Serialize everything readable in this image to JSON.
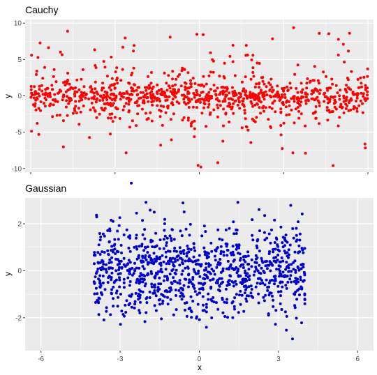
{
  "chart_data": [
    {
      "type": "scatter",
      "title": "Cauchy",
      "xlabel": "",
      "ylabel": "y",
      "xlim": [
        -6.2,
        6.2
      ],
      "ylim": [
        -10.5,
        10.5
      ],
      "x_ticks": [
        -6,
        -3,
        0,
        3,
        6
      ],
      "x_tick_labels": [
        "",
        "",
        "",
        "",
        ""
      ],
      "y_ticks": [
        -10,
        -5,
        0,
        5,
        10
      ],
      "y_tick_labels": [
        "-10",
        "-5",
        "0",
        "5",
        "10"
      ],
      "grid": true,
      "point_color": "#ff0000",
      "n_points": 1000,
      "distribution": "cauchy",
      "x_range": [
        -6,
        6
      ],
      "y_display_limit": 10
    },
    {
      "type": "scatter",
      "title": "Gaussian",
      "xlabel": "x",
      "ylabel": "y",
      "xlim": [
        -6.6,
        6.6
      ],
      "ylim": [
        -3.4,
        3.1
      ],
      "x_ticks": [
        -6,
        -3,
        0,
        3,
        6
      ],
      "x_tick_labels": [
        "-6",
        "-3",
        "0",
        "3",
        "6"
      ],
      "y_ticks": [
        -2,
        0,
        2
      ],
      "y_tick_labels": [
        "-2",
        "0",
        "2"
      ],
      "grid": true,
      "point_color": "#0000cd",
      "n_points": 1000,
      "distribution": "gaussian",
      "x_range": [
        -4,
        4
      ]
    }
  ]
}
